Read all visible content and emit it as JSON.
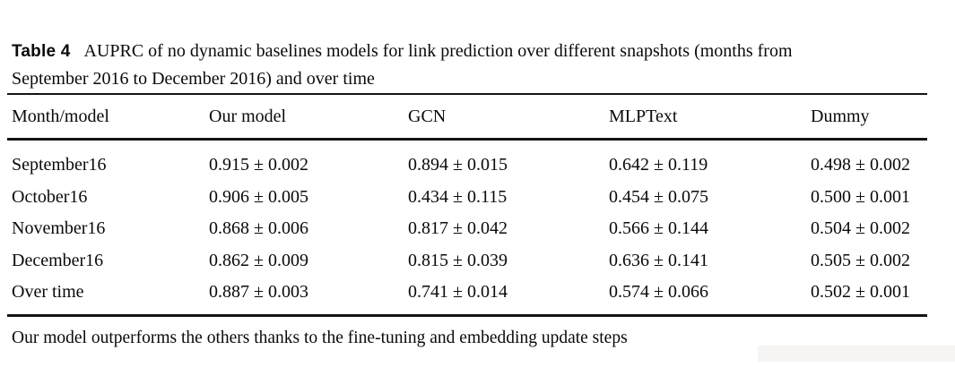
{
  "caption": {
    "label": "Table 4",
    "line1": "AUPRC of no dynamic baselines models for link prediction over different snapshots (months from",
    "line2": "September 2016 to December 2016) and over time"
  },
  "chart_data": {
    "type": "table",
    "columns": [
      "Month/model",
      "Our model",
      "GCN",
      "MLPText",
      "Dummy"
    ],
    "rows": [
      [
        "September16",
        "0.915 ± 0.002",
        "0.894 ± 0.015",
        "0.642 ± 0.119",
        "0.498 ± 0.002"
      ],
      [
        "October16",
        "0.906 ± 0.005",
        "0.434 ± 0.115",
        "0.454 ± 0.075",
        "0.500 ± 0.001"
      ],
      [
        "November16",
        "0.868 ± 0.006",
        "0.817 ± 0.042",
        "0.566 ± 0.144",
        "0.504 ± 0.002"
      ],
      [
        "December16",
        "0.862 ± 0.009",
        "0.815 ± 0.039",
        "0.636 ± 0.141",
        "0.505 ± 0.002"
      ],
      [
        "Over time",
        "0.887 ± 0.003",
        "0.741 ± 0.014",
        "0.574 ± 0.066",
        "0.502 ± 0.001"
      ]
    ]
  },
  "footnote": "Our model outperforms the others thanks to the fine-tuning and embedding update steps",
  "colors": {
    "text": "#0a0a0a",
    "rule": "#141414",
    "artifact": "#f6f5f3"
  }
}
